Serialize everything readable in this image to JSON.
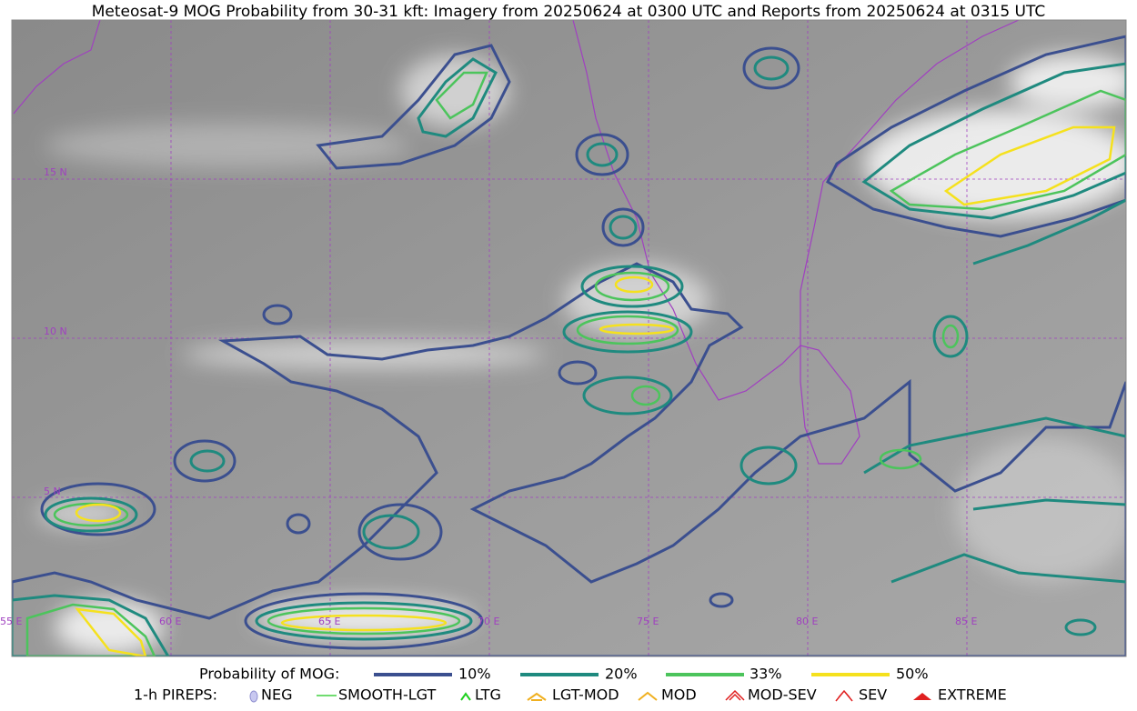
{
  "title": "Meteosat-9 MOG Probability from 30-31 kft: Imagery from 20250624 at 0300 UTC and Reports from 20250624 at 0315 UTC",
  "map": {
    "lon_labels": [
      "55 E",
      "60 E",
      "65 E",
      "70 E",
      "75 E",
      "80 E",
      "85 E"
    ],
    "lat_labels": [
      "15 N",
      "10 N",
      "5 N"
    ]
  },
  "legend": {
    "probability": {
      "title": "Probability of MOG:",
      "items": [
        "10%",
        "20%",
        "33%",
        "50%"
      ]
    },
    "pireps": {
      "title": "1-h PIREPS:",
      "items": [
        "NEG",
        "SMOOTH-LGT",
        "LTG",
        "LGT-MOD",
        "MOD",
        "MOD-SEV",
        "SEV",
        "EXTREME"
      ]
    }
  }
}
